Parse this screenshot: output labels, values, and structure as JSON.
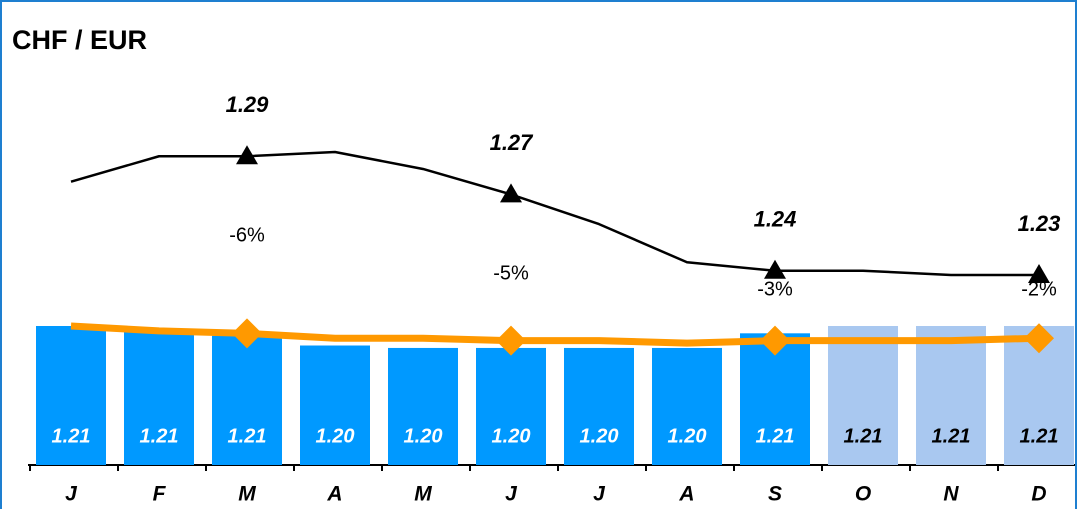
{
  "chart_data": {
    "type": "bar",
    "title": "CHF / EUR",
    "categories": [
      "J",
      "F",
      "M",
      "A",
      "M",
      "J",
      "J",
      "A",
      "S",
      "O",
      "N",
      "D"
    ],
    "values": [
      1.212,
      1.21,
      1.208,
      1.204,
      1.203,
      1.203,
      1.203,
      1.203,
      1.209,
      1.212,
      1.212,
      1.212
    ],
    "value_labels": [
      "1.21",
      "1.21",
      "1.21",
      "1.20",
      "1.20",
      "1.20",
      "1.20",
      "1.20",
      "1.21",
      "1.21",
      "1.21",
      "1.21"
    ],
    "colors": [
      "#0099ff",
      "#0099ff",
      "#0099ff",
      "#0099ff",
      "#0099ff",
      "#0099ff",
      "#0099ff",
      "#0099ff",
      "#0099ff",
      "#a9c8f0",
      "#a9c8f0",
      "#a9c8f0"
    ],
    "ylim": [
      1.155,
      1.212
    ],
    "y2lim": [
      1.234,
      1.292
    ],
    "series": [
      {
        "color": "#000000",
        "axis": "y2",
        "values": [
          1.278,
          1.29,
          1.29,
          1.292,
          1.284,
          1.272,
          1.258,
          1.24,
          1.236,
          1.236,
          1.234,
          1.234
        ],
        "value_labels": [
          null,
          null,
          "1.29",
          null,
          null,
          "1.27",
          null,
          null,
          "1.24",
          null,
          null,
          "1.23"
        ]
      },
      {
        "color": "#ff9900",
        "values": [
          1.212,
          1.21,
          1.209,
          1.207,
          1.207,
          1.206,
          1.206,
          1.205,
          1.206,
          1.206,
          1.206,
          1.207
        ]
      },
      {
        "values": [
          null,
          null,
          -6,
          null,
          null,
          -5,
          null,
          null,
          -3,
          null,
          null,
          -2
        ],
        "value_labels": [
          null,
          null,
          "-6%",
          null,
          null,
          "-5%",
          null,
          null,
          "-3%",
          null,
          null,
          "-2%"
        ]
      }
    ]
  }
}
